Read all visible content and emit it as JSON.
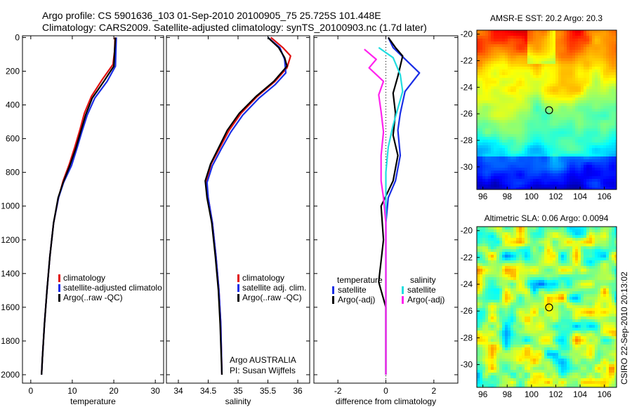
{
  "title_line1": "Argo profile: CS 5901636_103 01-Sep-2010 20100905_75 25.725S 101.448E",
  "title_line2": "Climatology: CARS2009. Satellite-adjusted climatology: synTS_20100903.nc (1.7d later)",
  "side_text": "CSIRO 22-Sep-2010 20:13:02",
  "colors": {
    "climatology": "#e01010",
    "satellite": "#1a2ee6",
    "argo": "#000000",
    "sat_salinity": "#22dde0",
    "argo_adj": "#ff22ee"
  },
  "chart_data": [
    {
      "type": "line",
      "id": "temperature",
      "xlabel": "temperature",
      "xlim": [
        -2,
        32
      ],
      "ylim": [
        2050,
        -10
      ],
      "xticks": [
        "0",
        "10",
        "20",
        "30"
      ],
      "xtick_values": [
        0,
        10,
        20,
        30
      ],
      "yticks": [
        "0",
        "200",
        "400",
        "600",
        "800",
        "1000",
        "1200",
        "1400",
        "1600",
        "1800",
        "2000"
      ],
      "ytick_values": [
        0,
        200,
        400,
        600,
        800,
        1000,
        1200,
        1400,
        1600,
        1800,
        2000
      ],
      "legend": [
        "climatology",
        "satellite-adjusted climatolo",
        "Argo(..raw -QC)"
      ],
      "series": [
        {
          "name": "climatology",
          "color": "#e01010",
          "points": [
            [
              20.3,
              0
            ],
            [
              20.2,
              80
            ],
            [
              19.8,
              160
            ],
            [
              17.2,
              250
            ],
            [
              14.6,
              350
            ],
            [
              12.9,
              450
            ],
            [
              11.8,
              550
            ],
            [
              10.6,
              650
            ],
            [
              9.3,
              750
            ],
            [
              7.8,
              850
            ],
            [
              6.7,
              950
            ],
            [
              5.5,
              1100
            ],
            [
              4.6,
              1300
            ],
            [
              3.9,
              1500
            ],
            [
              3.3,
              1700
            ],
            [
              2.8,
              1900
            ],
            [
              2.6,
              2000
            ]
          ]
        },
        {
          "name": "satellite-adjusted climatolo",
          "color": "#1a2ee6",
          "points": [
            [
              20.6,
              0
            ],
            [
              20.5,
              80
            ],
            [
              20.4,
              170
            ],
            [
              18.4,
              260
            ],
            [
              15.4,
              360
            ],
            [
              13.6,
              460
            ],
            [
              12.3,
              560
            ],
            [
              11.1,
              660
            ],
            [
              9.8,
              760
            ],
            [
              7.9,
              860
            ],
            [
              6.7,
              950
            ],
            [
              5.5,
              1100
            ],
            [
              4.6,
              1300
            ],
            [
              3.9,
              1500
            ],
            [
              3.3,
              1700
            ],
            [
              2.8,
              1900
            ],
            [
              2.6,
              2000
            ]
          ]
        },
        {
          "name": "Argo(..raw -QC)",
          "color": "#000000",
          "points": [
            [
              20.4,
              0
            ],
            [
              20.2,
              80
            ],
            [
              20.0,
              170
            ],
            [
              17.6,
              260
            ],
            [
              14.8,
              360
            ],
            [
              13.2,
              460
            ],
            [
              12.0,
              560
            ],
            [
              10.8,
              660
            ],
            [
              9.4,
              760
            ],
            [
              7.8,
              860
            ],
            [
              6.6,
              950
            ],
            [
              5.5,
              1100
            ],
            [
              4.6,
              1300
            ],
            [
              3.9,
              1500
            ],
            [
              3.3,
              1700
            ],
            [
              2.8,
              1900
            ],
            [
              2.6,
              2000
            ]
          ]
        }
      ]
    },
    {
      "type": "line",
      "id": "salinity",
      "xlabel": "salinity",
      "xlim": [
        33.8,
        36.2
      ],
      "ylim": [
        2050,
        -10
      ],
      "xticks": [
        "34",
        "34.5",
        "35",
        "35.5",
        "36"
      ],
      "xtick_values": [
        34,
        34.5,
        35,
        35.5,
        36
      ],
      "legend": [
        "climatology",
        "satellite adj. clim.",
        "Argo(..raw -QC)"
      ],
      "annotation": [
        "Argo AUSTRALIA",
        "PI: Susan Wijffels"
      ],
      "series": [
        {
          "name": "climatology",
          "color": "#e01010",
          "points": [
            [
              35.55,
              0
            ],
            [
              35.75,
              60
            ],
            [
              35.88,
              110
            ],
            [
              35.82,
              180
            ],
            [
              35.62,
              260
            ],
            [
              35.32,
              350
            ],
            [
              35.05,
              450
            ],
            [
              34.85,
              550
            ],
            [
              34.7,
              650
            ],
            [
              34.55,
              750
            ],
            [
              34.47,
              850
            ],
            [
              34.5,
              950
            ],
            [
              34.57,
              1100
            ],
            [
              34.63,
              1300
            ],
            [
              34.68,
              1500
            ],
            [
              34.71,
              1700
            ],
            [
              34.73,
              2000
            ]
          ]
        },
        {
          "name": "satellite adj. clim.",
          "color": "#1a2ee6",
          "points": [
            [
              35.5,
              0
            ],
            [
              35.7,
              60
            ],
            [
              35.78,
              130
            ],
            [
              35.8,
              210
            ],
            [
              35.62,
              280
            ],
            [
              35.35,
              360
            ],
            [
              35.08,
              460
            ],
            [
              34.88,
              560
            ],
            [
              34.72,
              660
            ],
            [
              34.57,
              760
            ],
            [
              34.48,
              860
            ],
            [
              34.5,
              950
            ],
            [
              34.57,
              1100
            ],
            [
              34.63,
              1300
            ],
            [
              34.68,
              1500
            ],
            [
              34.71,
              1700
            ],
            [
              34.73,
              2000
            ]
          ]
        },
        {
          "name": "Argo(..raw -QC)",
          "color": "#000000",
          "points": [
            [
              35.5,
              0
            ],
            [
              35.68,
              60
            ],
            [
              35.78,
              120
            ],
            [
              35.82,
              170
            ],
            [
              35.6,
              260
            ],
            [
              35.3,
              350
            ],
            [
              35.02,
              450
            ],
            [
              34.82,
              550
            ],
            [
              34.68,
              650
            ],
            [
              34.54,
              750
            ],
            [
              34.45,
              850
            ],
            [
              34.48,
              950
            ],
            [
              34.56,
              1100
            ],
            [
              34.62,
              1300
            ],
            [
              34.67,
              1500
            ],
            [
              34.7,
              1700
            ],
            [
              34.73,
              2000
            ]
          ]
        }
      ]
    },
    {
      "type": "line",
      "id": "difference",
      "xlabel": "difference from climatology",
      "xlim": [
        -3,
        3
      ],
      "ylim": [
        2050,
        -10
      ],
      "xticks": [
        "-2",
        "0",
        "2"
      ],
      "xtick_values": [
        -2,
        0,
        2
      ],
      "legend_groups": [
        {
          "heading": "temperature",
          "items": [
            "satellite",
            "Argo(-adj)"
          ]
        },
        {
          "heading": "salinity",
          "items": [
            "satellite",
            "Argo(-adj)"
          ]
        }
      ],
      "series": [
        {
          "name": "satellite (temperature)",
          "color": "#1a2ee6",
          "points": [
            [
              0.1,
              0
            ],
            [
              0.3,
              60
            ],
            [
              1.4,
              210
            ],
            [
              0.8,
              320
            ],
            [
              0.6,
              450
            ],
            [
              0.5,
              550
            ],
            [
              0.6,
              700
            ],
            [
              0.4,
              850
            ],
            [
              0.1,
              950
            ],
            [
              0.0,
              1100
            ],
            [
              0.0,
              1300
            ],
            [
              0.0,
              1500
            ],
            [
              0.0,
              2000
            ]
          ]
        },
        {
          "name": "Argo(-adj) (temperature)",
          "color": "#000000",
          "points": [
            [
              0.1,
              0
            ],
            [
              0.4,
              60
            ],
            [
              0.7,
              110
            ],
            [
              0.6,
              170
            ],
            [
              0.5,
              230
            ],
            [
              0.3,
              330
            ],
            [
              0.4,
              450
            ],
            [
              0.3,
              580
            ],
            [
              0.5,
              700
            ],
            [
              0.3,
              850
            ],
            [
              -0.2,
              1000
            ],
            [
              -0.1,
              1200
            ],
            [
              -0.3,
              1450
            ],
            [
              0.0,
              1600
            ],
            [
              0.0,
              2000
            ]
          ]
        },
        {
          "name": "satellite (salinity)",
          "color": "#22dde0",
          "points": [
            [
              -0.3,
              60
            ],
            [
              0.3,
              120
            ],
            [
              0.6,
              220
            ],
            [
              0.7,
              320
            ],
            [
              0.5,
              420
            ],
            [
              0.3,
              520
            ],
            [
              0.1,
              650
            ],
            [
              0.0,
              800
            ],
            [
              0.0,
              1000
            ],
            [
              0.0,
              1300
            ],
            [
              0.0,
              2000
            ]
          ]
        },
        {
          "name": "Argo(-adj) (salinity)",
          "color": "#ff22ee",
          "points": [
            [
              -0.9,
              70
            ],
            [
              -0.4,
              130
            ],
            [
              -0.7,
              180
            ],
            [
              -0.1,
              260
            ],
            [
              -0.3,
              340
            ],
            [
              -0.2,
              440
            ],
            [
              -0.1,
              560
            ],
            [
              -0.2,
              700
            ],
            [
              -0.2,
              850
            ],
            [
              -0.1,
              950
            ],
            [
              0.0,
              1100
            ],
            [
              0.0,
              2000
            ]
          ]
        }
      ]
    },
    {
      "type": "heatmap",
      "id": "sst",
      "title": "AMSR-E SST: 20.2  Argo: 20.3",
      "xlim": [
        95.5,
        107
      ],
      "ylim": [
        -31.7,
        -19.7
      ],
      "xticks": [
        "96",
        "98",
        "100",
        "102",
        "104",
        "106"
      ],
      "xtick_values": [
        96,
        98,
        100,
        102,
        104,
        106
      ],
      "yticks": [
        "-20",
        "-22",
        "-24",
        "-26",
        "-28",
        "-30"
      ],
      "ytick_values": [
        -20,
        -22,
        -24,
        -26,
        -28,
        -30
      ],
      "marker": [
        101.45,
        -25.73
      ]
    },
    {
      "type": "heatmap",
      "id": "sla",
      "title": "Altimetric SLA: 0.06  Argo: 0.0094",
      "xlim": [
        95.5,
        107
      ],
      "ylim": [
        -31.7,
        -19.7
      ],
      "xticks": [
        "96",
        "98",
        "100",
        "102",
        "104",
        "106"
      ],
      "xtick_values": [
        96,
        98,
        100,
        102,
        104,
        106
      ],
      "yticks": [
        "-20",
        "-22",
        "-24",
        "-26",
        "-28",
        "-30"
      ],
      "ytick_values": [
        -20,
        -22,
        -24,
        -26,
        -28,
        -30
      ],
      "marker": [
        101.45,
        -25.73
      ]
    }
  ]
}
